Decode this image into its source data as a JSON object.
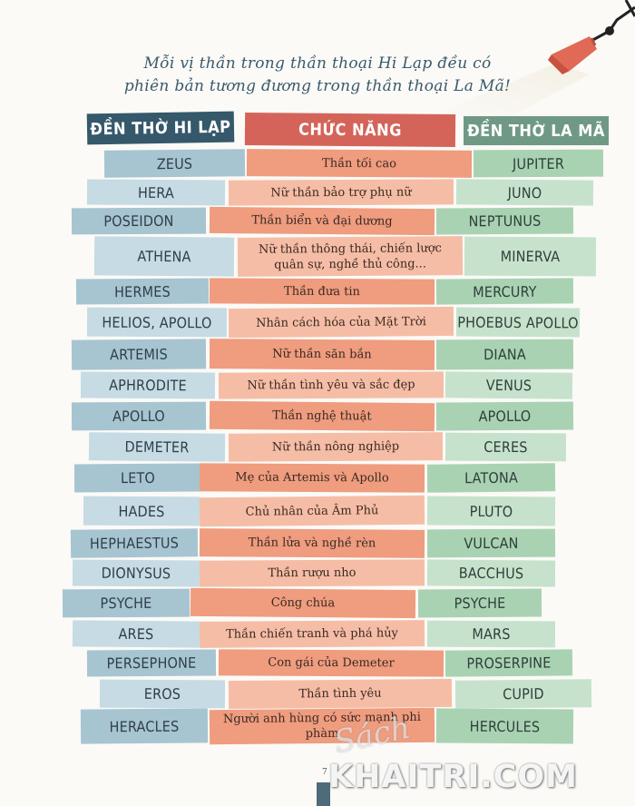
{
  "intro": {
    "line1": "Mỗi vị thần trong thần thoại Hi Lạp đều có",
    "line2": "phiên bản tương đương trong thần thoại La Mã!"
  },
  "headers": {
    "greek": "ĐỀN THỜ HI LẠP",
    "function": "CHỨC NĂNG",
    "roman": "ĐỀN THỜ LA MÃ"
  },
  "rows": [
    {
      "greek": "ZEUS",
      "function": "Thần tối cao",
      "roman": "JUPITER"
    },
    {
      "greek": "HERA",
      "function": "Nữ thần bảo trợ phụ nữ",
      "roman": "JUNO"
    },
    {
      "greek": "POSEIDON",
      "function": "Thần biển và đại dương",
      "roman": "NEPTUNUS"
    },
    {
      "greek": "ATHENA",
      "function": "Nữ thần thông thái, chiến lược quân sự, nghề thủ công...",
      "roman": "MINERVA"
    },
    {
      "greek": "HERMES",
      "function": "Thần đưa tin",
      "roman": "MERCURY"
    },
    {
      "greek": "HELIOS, APOLLO",
      "function": "Nhân cách hóa của Mặt Trời",
      "roman": "PHOEBUS APOLLO"
    },
    {
      "greek": "ARTEMIS",
      "function": "Nữ thần săn bắn",
      "roman": "DIANA"
    },
    {
      "greek": "APHRODITE",
      "function": "Nữ thần tình yêu và sắc đẹp",
      "roman": "VENUS"
    },
    {
      "greek": "APOLLO",
      "function": "Thần nghệ thuật",
      "roman": "APOLLO"
    },
    {
      "greek": "DEMETER",
      "function": "Nữ thần nông nghiệp",
      "roman": "CERES"
    },
    {
      "greek": "LETO",
      "function": "Mẹ của Artemis và Apollo",
      "roman": "LATONA"
    },
    {
      "greek": "HADES",
      "function": "Chủ nhân của Âm Phủ",
      "roman": "PLUTO"
    },
    {
      "greek": "HEPHAESTUS",
      "function": "Thần lửa và nghề rèn",
      "roman": "VULCAN"
    },
    {
      "greek": "DIONYSUS",
      "function": "Thần rượu nho",
      "roman": "BACCHUS"
    },
    {
      "greek": "PSYCHE",
      "function": "Công chúa",
      "roman": "PSYCHE"
    },
    {
      "greek": "ARES",
      "function": "Thần chiến tranh và phá hủy",
      "roman": "MARS"
    },
    {
      "greek": "PERSEPHONE",
      "function": "Con gái của Demeter",
      "roman": "PROSERPINE"
    },
    {
      "greek": "EROS",
      "function": "Thần tình yêu",
      "roman": "CUPID"
    },
    {
      "greek": "HERACLES",
      "function": "Người anh hùng có sức mạnh phi phàm",
      "roman": "HERCULES"
    }
  ],
  "page_number": "7",
  "watermark": {
    "script": "Sách",
    "text": "KHAITRI.COM"
  },
  "colors": {
    "greek_header": "#35586b",
    "function_header": "#d4645a",
    "roman_header": "#6f9985",
    "greek_strip": "#a7c4d1",
    "function_strip": "#ef9c7f",
    "roman_strip": "#a9d2b3"
  }
}
